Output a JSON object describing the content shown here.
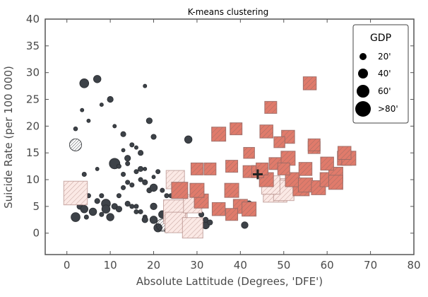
{
  "chart_data": {
    "type": "scatter",
    "title": "K-means clustering",
    "xlabel": "Absolute Lattitude (Degrees, 'DFE')",
    "ylabel": "Suicide Rate (per 100 000)",
    "xlim": [
      -5,
      80
    ],
    "ylim": [
      -4,
      40
    ],
    "xticks": [
      0,
      10,
      20,
      30,
      40,
      50,
      60,
      70,
      80
    ],
    "yticks": [
      0,
      5,
      10,
      15,
      20,
      25,
      30,
      35,
      40
    ],
    "grid": false,
    "legend": {
      "title": "GDP",
      "placement": "top-right",
      "entries": [
        {
          "label": "20'",
          "size": 20
        },
        {
          "label": "40'",
          "size": 40
        },
        {
          "label": "60'",
          "size": 60
        },
        {
          "label": ">80'",
          "size": 85
        }
      ]
    },
    "colors": {
      "circle_cluster": "#3d4248",
      "square_cluster_fill": "#e07b6b",
      "square_edge": "#9b6b66",
      "centroid": "#222222"
    },
    "series": [
      {
        "marker": "circle",
        "points": [
          [
            2,
            16.5,
            60
          ],
          [
            3.5,
            23,
            5
          ],
          [
            4,
            28,
            40
          ],
          [
            7,
            28.8,
            30
          ],
          [
            5,
            21,
            5
          ],
          [
            2,
            19.5,
            8
          ],
          [
            4,
            11,
            10
          ],
          [
            2,
            9,
            20
          ],
          [
            2,
            7.5,
            20
          ],
          [
            3,
            5,
            20
          ],
          [
            4,
            4.5,
            30
          ],
          [
            6,
            4,
            30
          ],
          [
            4.5,
            3,
            10
          ],
          [
            2,
            3,
            40
          ],
          [
            5,
            7,
            10
          ],
          [
            7,
            6,
            15
          ],
          [
            8,
            7,
            10
          ],
          [
            9,
            5.5,
            40
          ],
          [
            9,
            4.5,
            35
          ],
          [
            8,
            3.5,
            10
          ],
          [
            10,
            3,
            30
          ],
          [
            11,
            5,
            20
          ],
          [
            11,
            13,
            50
          ],
          [
            12,
            12.5,
            10
          ],
          [
            13,
            15.5,
            5
          ],
          [
            14,
            14,
            20
          ],
          [
            15,
            16.5,
            10
          ],
          [
            16,
            16,
            5
          ],
          [
            17,
            15,
            15
          ],
          [
            17,
            12,
            15
          ],
          [
            18,
            12,
            5
          ],
          [
            18,
            9.5,
            15
          ],
          [
            20,
            10.5,
            5
          ],
          [
            21,
            11.5,
            5
          ],
          [
            17,
            10,
            10
          ],
          [
            15,
            9,
            10
          ],
          [
            16,
            11.5,
            10
          ],
          [
            14,
            9.5,
            10
          ],
          [
            13,
            8.5,
            10
          ],
          [
            13,
            11,
            10
          ],
          [
            12,
            7,
            10
          ],
          [
            12,
            4.5,
            20
          ],
          [
            14,
            5.5,
            15
          ],
          [
            15,
            5,
            10
          ],
          [
            16,
            5,
            10
          ],
          [
            16,
            4,
            10
          ],
          [
            17,
            4,
            10
          ],
          [
            18,
            3,
            10
          ],
          [
            18,
            2.5,
            20
          ],
          [
            19,
            8,
            15
          ],
          [
            20,
            8.5,
            30
          ],
          [
            22,
            8,
            10
          ],
          [
            20,
            5,
            25
          ],
          [
            20,
            2.5,
            30
          ],
          [
            21,
            1,
            35
          ],
          [
            22,
            1.5,
            60
          ],
          [
            22,
            3.5,
            30
          ],
          [
            23,
            0.5,
            10
          ],
          [
            24,
            2,
            30
          ],
          [
            26,
            1,
            10
          ],
          [
            24,
            5.5,
            15
          ],
          [
            23,
            7,
            10
          ],
          [
            28,
            17.5,
            30
          ],
          [
            30,
            2.5,
            10
          ],
          [
            31,
            3.5,
            15
          ],
          [
            32,
            1.5,
            30
          ],
          [
            32,
            2.5,
            15
          ],
          [
            33,
            2,
            15
          ],
          [
            19,
            21,
            20
          ],
          [
            20,
            18,
            15
          ],
          [
            18,
            27.5,
            5
          ],
          [
            21,
            11.5,
            10
          ],
          [
            24,
            7,
            10
          ],
          [
            42,
            5.5,
            20
          ],
          [
            42,
            4,
            15
          ],
          [
            41,
            1.5,
            25
          ],
          [
            40,
            4.5,
            30
          ],
          [
            10,
            25,
            20
          ],
          [
            8,
            24,
            5
          ],
          [
            14,
            13,
            10
          ],
          [
            7,
            12,
            5
          ],
          [
            11,
            20,
            5
          ],
          [
            13,
            18.5,
            15
          ],
          [
            26,
            7.5,
            10
          ]
        ]
      },
      {
        "marker": "square",
        "points": [
          [
            2,
            7.5,
            85
          ],
          [
            25,
            10,
            60
          ],
          [
            26,
            8,
            50
          ],
          [
            25,
            4,
            85
          ],
          [
            25,
            2,
            70
          ],
          [
            29,
            1,
            70
          ],
          [
            29,
            5.5,
            60
          ],
          [
            31,
            6,
            40
          ],
          [
            30,
            8,
            40
          ],
          [
            30,
            12,
            30
          ],
          [
            33,
            12,
            30
          ],
          [
            35,
            4.5,
            35
          ],
          [
            35,
            18.5,
            40
          ],
          [
            39,
            19.5,
            30
          ],
          [
            38,
            12.5,
            30
          ],
          [
            38,
            8,
            40
          ],
          [
            38,
            3.5,
            30
          ],
          [
            40,
            5,
            40
          ],
          [
            42,
            4.5,
            40
          ],
          [
            42,
            15,
            25
          ],
          [
            42,
            11.5,
            30
          ],
          [
            46,
            10,
            40
          ],
          [
            46,
            19,
            35
          ],
          [
            47,
            9,
            60
          ],
          [
            47,
            23.5,
            30
          ],
          [
            48,
            13,
            30
          ],
          [
            48,
            8,
            85
          ],
          [
            49,
            17,
            25
          ],
          [
            50,
            12,
            30
          ],
          [
            50,
            8,
            70
          ],
          [
            51,
            14,
            40
          ],
          [
            51,
            18,
            35
          ],
          [
            52,
            10,
            40
          ],
          [
            54,
            8.5,
            50
          ],
          [
            55,
            9,
            40
          ],
          [
            55,
            12,
            35
          ],
          [
            57,
            16,
            30
          ],
          [
            56,
            28,
            35
          ],
          [
            58,
            8.5,
            40
          ],
          [
            60,
            10,
            40
          ],
          [
            60,
            13,
            35
          ],
          [
            62,
            11,
            40
          ],
          [
            62,
            9.5,
            40
          ],
          [
            64,
            14,
            40
          ],
          [
            64,
            15,
            35
          ],
          [
            65,
            14,
            40
          ],
          [
            44,
            11.5,
            30
          ],
          [
            45,
            12,
            30
          ],
          [
            57,
            16.5,
            30
          ]
        ]
      }
    ],
    "centroids": [
      [
        44,
        11
      ]
    ]
  }
}
